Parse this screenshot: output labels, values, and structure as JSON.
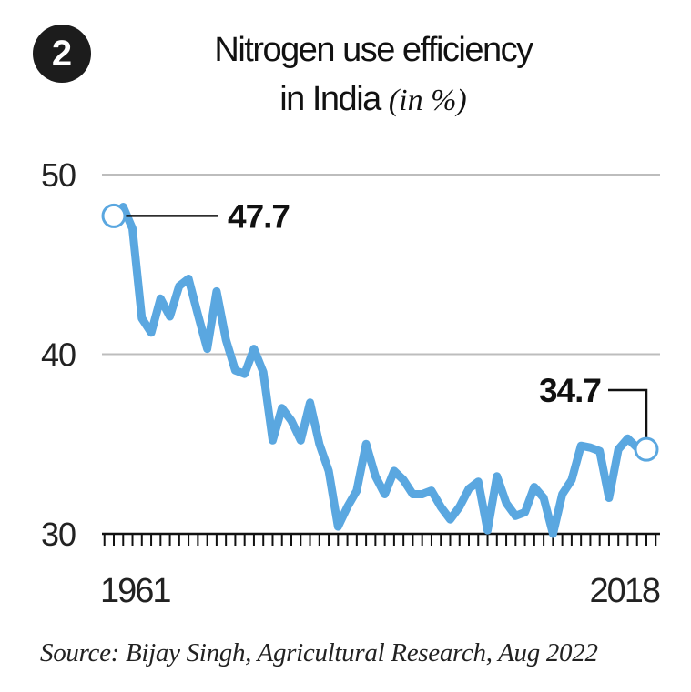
{
  "badge": "2",
  "title": {
    "line1": "Nitrogen use efficiency",
    "line2": "in India",
    "unit": "(in %)"
  },
  "source": "Source: Bijay Singh, Agricultural Research, Aug 2022",
  "colors": {
    "line": "#5aa7e0",
    "grid": "#bdbdbd",
    "text": "#111111"
  },
  "chart_data": {
    "type": "line",
    "title": "Nitrogen use efficiency in India (in %)",
    "xlabel": "",
    "ylabel": "",
    "x_tick_labels": [
      "1961",
      "2018"
    ],
    "y_ticks": [
      30,
      40,
      50
    ],
    "ylim": [
      30,
      50
    ],
    "xlim": [
      1961,
      2018
    ],
    "grid": true,
    "series": [
      {
        "name": "Nitrogen use efficiency",
        "x": [
          1961,
          1962,
          1963,
          1964,
          1965,
          1966,
          1967,
          1968,
          1969,
          1970,
          1971,
          1972,
          1973,
          1974,
          1975,
          1976,
          1977,
          1978,
          1979,
          1980,
          1981,
          1982,
          1983,
          1984,
          1985,
          1986,
          1987,
          1988,
          1989,
          1990,
          1991,
          1992,
          1993,
          1994,
          1995,
          1996,
          1997,
          1998,
          1999,
          2000,
          2001,
          2002,
          2003,
          2004,
          2005,
          2006,
          2007,
          2008,
          2009,
          2010,
          2011,
          2012,
          2013,
          2014,
          2015,
          2016,
          2017,
          2018
        ],
        "values": [
          47.7,
          48.2,
          47.0,
          42.0,
          41.2,
          43.1,
          42.1,
          43.8,
          44.2,
          42.2,
          40.3,
          43.5,
          40.8,
          39.1,
          38.9,
          40.3,
          39.0,
          35.2,
          37.0,
          36.3,
          35.2,
          37.3,
          35.0,
          33.5,
          30.4,
          31.5,
          32.4,
          35.0,
          33.2,
          32.2,
          33.5,
          33.0,
          32.2,
          32.2,
          32.4,
          31.5,
          30.8,
          31.5,
          32.5,
          32.9,
          30.2,
          33.2,
          31.7,
          31.0,
          31.2,
          32.6,
          32.0,
          30.0,
          32.2,
          33.0,
          34.9,
          34.8,
          34.6,
          32.0,
          34.7,
          35.3,
          34.8,
          34.7
        ],
        "annotations": [
          {
            "x": 1961,
            "label": "47.7"
          },
          {
            "x": 2018,
            "label": "34.7"
          }
        ]
      }
    ]
  }
}
